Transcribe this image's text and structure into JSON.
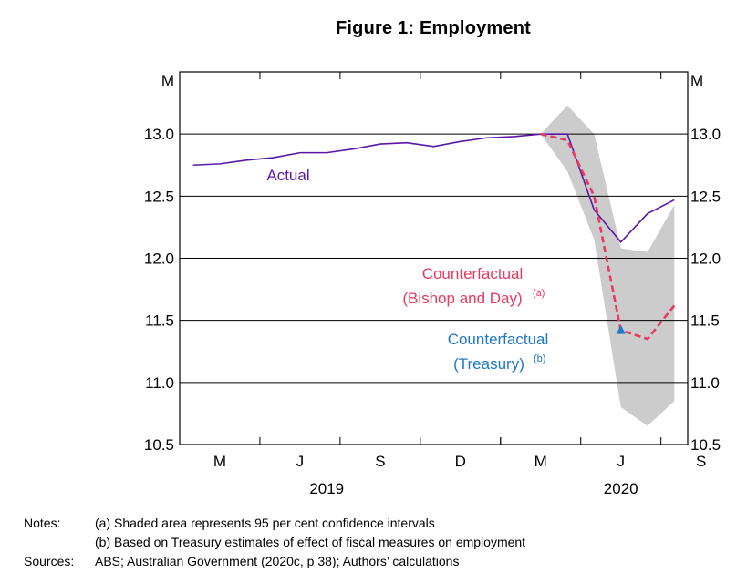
{
  "title": "Figure 1: Employment",
  "chart_data": {
    "type": "line",
    "title": "Figure 1: Employment",
    "unit_left": "M",
    "unit_right": "M",
    "ylim": [
      10.5,
      13.5
    ],
    "yticks": [
      10.5,
      11.0,
      11.5,
      12.0,
      12.5,
      13.0
    ],
    "ytick_labels": [
      "10.5",
      "11.0",
      "11.5",
      "12.0",
      "12.5",
      "13.0"
    ],
    "x_range_months": [
      0,
      19
    ],
    "month_ticks": [
      {
        "m": 1,
        "label": "M"
      },
      {
        "m": 4,
        "label": "J"
      },
      {
        "m": 7,
        "label": "S"
      },
      {
        "m": 10,
        "label": "D"
      },
      {
        "m": 13,
        "label": "M"
      },
      {
        "m": 16,
        "label": "J"
      },
      {
        "m": 19,
        "label": "S"
      }
    ],
    "years": [
      {
        "m": 5.5,
        "label": "2019"
      },
      {
        "m": 16.5,
        "label": "2020"
      }
    ],
    "series": [
      {
        "name": "Actual",
        "label": "Actual",
        "color": "#5a17a8",
        "style": "solid",
        "x": [
          0.5,
          1.5,
          2.5,
          3.5,
          4.5,
          5.5,
          6.5,
          7.5,
          8.5,
          9.5,
          10.5,
          11.5,
          12.5,
          13.5,
          14.5,
          15.5,
          16.5,
          17.5,
          18.5
        ],
        "values": [
          12.75,
          12.76,
          12.79,
          12.81,
          12.85,
          12.85,
          12.88,
          12.92,
          12.93,
          12.9,
          12.94,
          12.97,
          12.98,
          13.0,
          13.0,
          12.39,
          12.13,
          12.36,
          12.47
        ]
      },
      {
        "name": "Counterfactual (Bishop and Day)",
        "label_line1": "Counterfactual",
        "label_line2": "(Bishop and Day)",
        "sup": "(a)",
        "color": "#e8395f",
        "style": "dashed",
        "x": [
          13.5,
          14.5,
          15.5,
          16.5,
          17.5,
          18.5
        ],
        "values": [
          13.0,
          12.95,
          12.5,
          11.42,
          11.35,
          11.62
        ]
      },
      {
        "name": "Counterfactual (Treasury)",
        "label_line1": "Counterfactual",
        "label_line2": "(Treasury)",
        "sup": "(b)",
        "color": "#1f78c8",
        "style": "marker",
        "x": [
          16.5
        ],
        "values": [
          11.42
        ]
      }
    ],
    "confidence_band": {
      "description": "95 per cent confidence interval",
      "color": "#cccccc",
      "x": [
        13.5,
        14.5,
        15.5,
        16.5,
        17.5,
        18.5
      ],
      "upper": [
        13.0,
        13.23,
        13.0,
        12.08,
        12.05,
        12.43
      ],
      "lower": [
        13.0,
        12.7,
        12.15,
        10.8,
        10.65,
        10.85
      ]
    }
  },
  "notes": {
    "notes_label": "Notes:",
    "note_a": "(a) Shaded area represents 95 per cent confidence intervals",
    "note_b": "(b) Based on Treasury estimates of effect of fiscal measures on employment",
    "sources_label": "Sources:",
    "sources": "ABS; Australian Government (2020c, p 38); Authors’ calculations"
  }
}
